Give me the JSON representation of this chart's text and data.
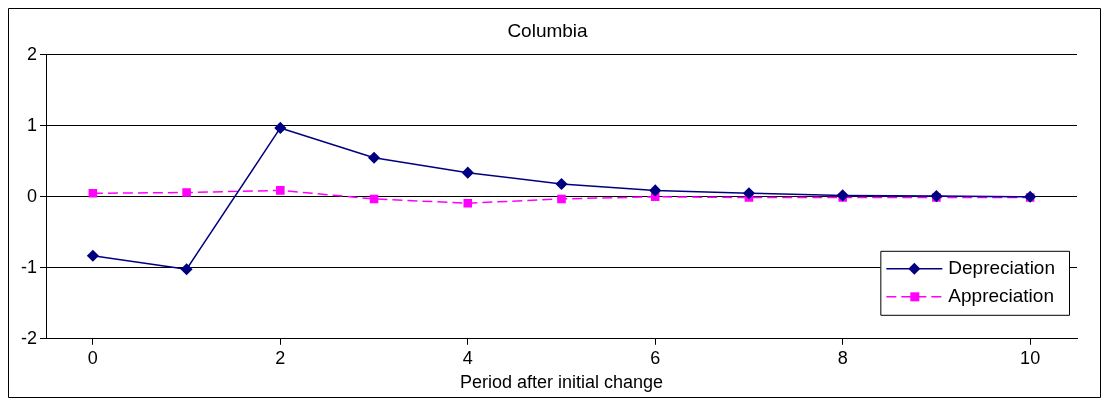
{
  "chart_data": {
    "type": "line",
    "title": "Columbia",
    "xlabel": "Period after initial change",
    "x": [
      0,
      1,
      2,
      3,
      4,
      5,
      6,
      7,
      8,
      9,
      10
    ],
    "xlim": [
      -0.5,
      10.5
    ],
    "xticks": [
      0,
      2,
      4,
      6,
      8,
      10
    ],
    "ylim": [
      -2,
      2
    ],
    "yticks": [
      -2,
      -1,
      0,
      1,
      2
    ],
    "grid": "y",
    "legend": "bottom right",
    "series": [
      {
        "name": "Depreciation",
        "color": "#000080",
        "marker": "diamond",
        "line_style": "solid",
        "values": [
          -0.83,
          -1.02,
          0.97,
          0.55,
          0.34,
          0.18,
          0.09,
          0.05,
          0.02,
          0.01,
          0.0
        ]
      },
      {
        "name": "Appreciation",
        "color": "#ff00ff",
        "marker": "square",
        "line_style": "dashed",
        "values": [
          0.05,
          0.06,
          0.09,
          -0.03,
          -0.09,
          -0.03,
          0.0,
          -0.01,
          -0.01,
          -0.01,
          -0.01
        ]
      }
    ]
  }
}
